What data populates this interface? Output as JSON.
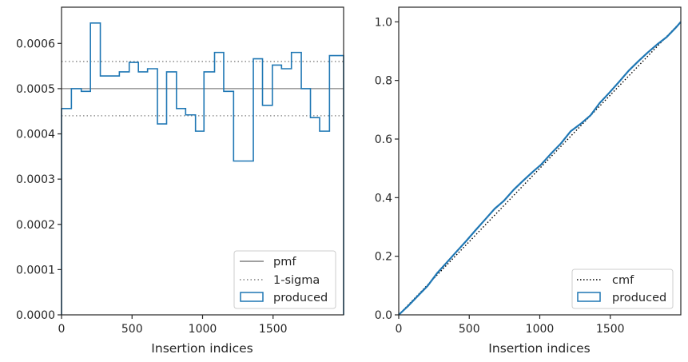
{
  "chart_data": [
    {
      "type": "histogram-step",
      "title": "",
      "xlabel": "Insertion indices",
      "ylabel": "",
      "xlim": [
        0,
        2000
      ],
      "ylim": [
        0,
        0.00068
      ],
      "xticks": [
        0,
        500,
        1000,
        1500
      ],
      "xtick_labels": [
        "0",
        "500",
        "1000",
        "1500"
      ],
      "yticks": [
        0,
        0.0001,
        0.0002,
        0.0003,
        0.0004,
        0.0005,
        0.0006
      ],
      "ytick_labels": [
        "0.0000",
        "0.0001",
        "0.0002",
        "0.0003",
        "0.0004",
        "0.0005",
        "0.0006"
      ],
      "grid": false,
      "legend_position": "lower-right",
      "bin_edges": [
        0,
        70,
        140,
        205,
        275,
        345,
        410,
        480,
        545,
        610,
        680,
        745,
        815,
        880,
        950,
        1010,
        1085,
        1150,
        1220,
        1290,
        1360,
        1425,
        1495,
        1560,
        1630,
        1700,
        1765,
        1830,
        1900,
        1970,
        2000
      ],
      "series": [
        {
          "name": "pmf",
          "kind": "hline",
          "value": 0.0005,
          "color": "#808080"
        },
        {
          "name": "1-sigma",
          "kind": "hline-pair",
          "values": [
            0.00044,
            0.00056
          ],
          "color": "#808080"
        },
        {
          "name": "produced",
          "kind": "step",
          "values": [
            0.000456,
            0.0005,
            0.000494,
            0.000645,
            0.000528,
            0.000528,
            0.000537,
            0.000558,
            0.000537,
            0.000544,
            0.000422,
            0.000537,
            0.000456,
            0.000442,
            0.000406,
            0.000537,
            0.00058,
            0.000494,
            0.00034,
            0.00034,
            0.000566,
            0.000463,
            0.000552,
            0.000544,
            0.00058,
            0.0005,
            0.000436,
            0.000406,
            0.000573,
            0.000573
          ],
          "color": "#1f77b4"
        }
      ]
    },
    {
      "type": "line",
      "title": "",
      "xlabel": "Insertion indices",
      "ylabel": "",
      "xlim": [
        0,
        2000
      ],
      "ylim": [
        0,
        1.05
      ],
      "xticks": [
        0,
        500,
        1000,
        1500
      ],
      "xtick_labels": [
        "0",
        "500",
        "1000",
        "1500"
      ],
      "yticks": [
        0.0,
        0.2,
        0.4,
        0.6,
        0.8,
        1.0
      ],
      "ytick_labels": [
        "0.0",
        "0.2",
        "0.4",
        "0.6",
        "0.8",
        "1.0"
      ],
      "grid": false,
      "legend_position": "lower-right",
      "series": [
        {
          "name": "cmf",
          "style": "dotted",
          "color": "#000000",
          "x": [
            0,
            2000
          ],
          "y": [
            0,
            1.0
          ]
        },
        {
          "name": "produced",
          "style": "solid",
          "color": "#1f77b4",
          "x": [
            0,
            70,
            140,
            205,
            275,
            345,
            410,
            480,
            545,
            610,
            680,
            745,
            815,
            880,
            950,
            1010,
            1085,
            1150,
            1220,
            1290,
            1360,
            1425,
            1495,
            1560,
            1630,
            1700,
            1765,
            1830,
            1900,
            1970,
            2000
          ],
          "y": [
            0,
            0.032,
            0.067,
            0.099,
            0.144,
            0.181,
            0.216,
            0.253,
            0.289,
            0.324,
            0.362,
            0.389,
            0.427,
            0.457,
            0.488,
            0.513,
            0.553,
            0.585,
            0.627,
            0.652,
            0.681,
            0.723,
            0.759,
            0.794,
            0.833,
            0.866,
            0.895,
            0.922,
            0.948,
            0.983,
            1.0
          ]
        }
      ]
    }
  ]
}
